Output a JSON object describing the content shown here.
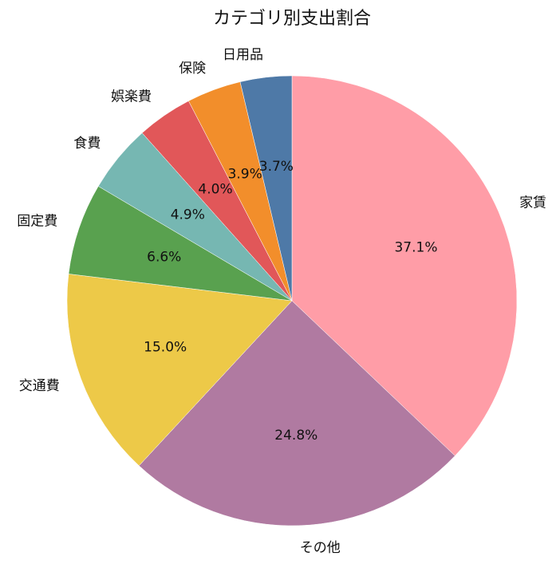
{
  "chart_data": {
    "type": "pie",
    "title": "カテゴリ別支出割合",
    "start_angle_deg": 90,
    "direction": "clockwise",
    "slices": [
      {
        "label": "家賃",
        "percent_label": "37.1%",
        "value": 37.1,
        "color": "#ff9da7"
      },
      {
        "label": "その他",
        "percent_label": "24.8%",
        "value": 24.8,
        "color": "#b07aa1"
      },
      {
        "label": "交通費",
        "percent_label": "15.0%",
        "value": 15.0,
        "color": "#edc948"
      },
      {
        "label": "固定費",
        "percent_label": "6.6%",
        "value": 6.6,
        "color": "#59a14f"
      },
      {
        "label": "食費",
        "percent_label": "4.9%",
        "value": 4.9,
        "color": "#76b7b2"
      },
      {
        "label": "娯楽費",
        "percent_label": "4.0%",
        "value": 4.0,
        "color": "#e15759"
      },
      {
        "label": "保険",
        "percent_label": "3.9%",
        "value": 3.9,
        "color": "#f28e2b"
      },
      {
        "label": "日用品",
        "percent_label": "3.7%",
        "value": 3.7,
        "color": "#4e79a7"
      }
    ]
  }
}
